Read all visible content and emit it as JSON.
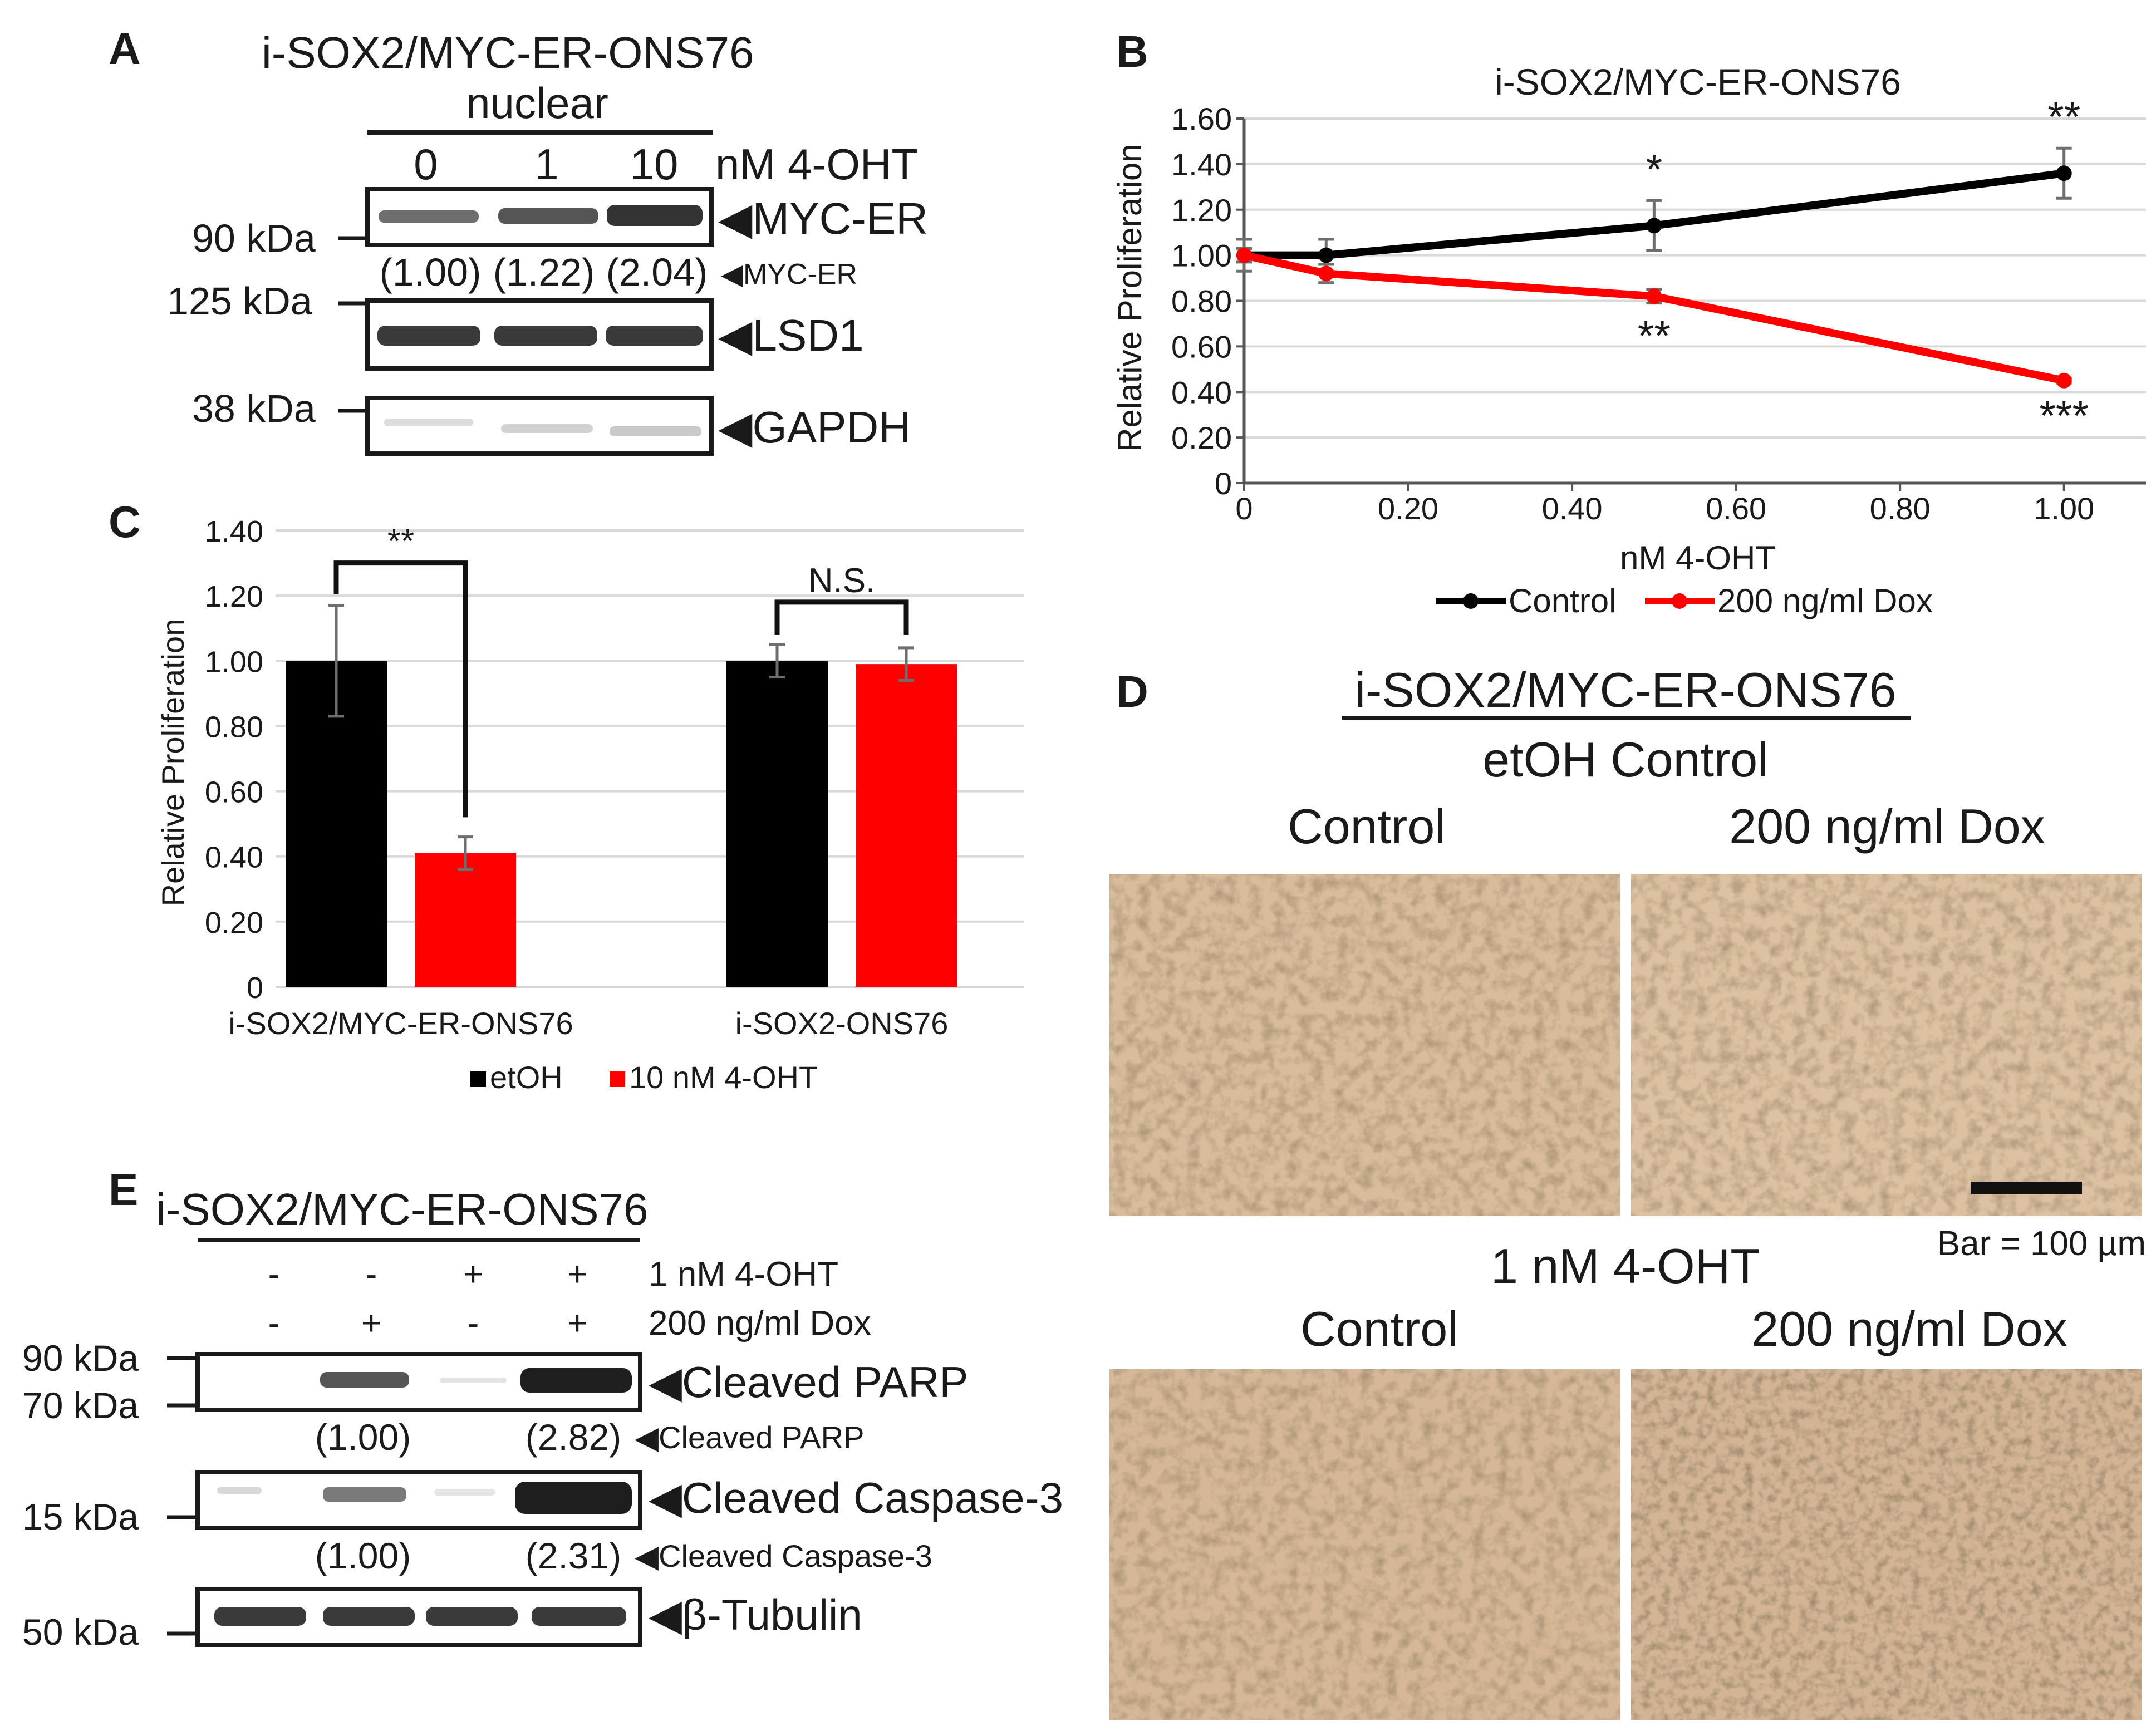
{
  "panels": {
    "a": "A",
    "b": "B",
    "c": "C",
    "d": "D",
    "e": "E"
  },
  "colors": {
    "control": "#000000",
    "treatment": "#ff0000",
    "grid": "#d9d9d9",
    "errorbar": "#6e6e6e",
    "cells": "#d6b99a"
  },
  "panel_a": {
    "title": "i-SOX2/MYC-ER-ONS76",
    "fraction": "nuclear",
    "lanes": [
      "0",
      "1",
      "10"
    ],
    "lane_unit": "nM 4-OHT",
    "mw": [
      "90 kDa",
      "125 kDa",
      "38 kDa"
    ],
    "bands": [
      "◀MYC-ER",
      "◀LSD1",
      "◀GAPDH"
    ],
    "quant": [
      "(1.00)",
      "(1.22)",
      "(2.04)"
    ],
    "quant_label": "◀MYC-ER"
  },
  "panel_d": {
    "title": "i-SOX2/MYC-ER-ONS76",
    "row1_title": "etOH Control",
    "row2_title": "1 nM 4-OHT",
    "col_control": "Control",
    "col_dox": "200 ng/ml Dox",
    "scalebar": "Bar = 100 µm"
  },
  "panel_e": {
    "title": "i-SOX2/MYC-ER-ONS76",
    "ohtsigns": [
      "-",
      "-",
      "+",
      "+"
    ],
    "ohtlabel": "1 nM 4-OHT",
    "doxsigns": [
      "-",
      "+",
      "-",
      "+"
    ],
    "doxlabel": "200 ng/ml Dox",
    "mw": [
      "90 kDa",
      "70 kDa",
      "15 kDa",
      "50 kDa"
    ],
    "bands": [
      "◀Cleaved PARP",
      "◀Cleaved Caspase-3",
      "◀β-Tubulin"
    ],
    "parp_quant": [
      "(1.00)",
      "(2.82)"
    ],
    "parp_quant_label": "◀Cleaved PARP",
    "casp_quant": [
      "(1.00)",
      "(2.31)"
    ],
    "casp_quant_label": "◀Cleaved Caspase-3"
  },
  "chart_data": [
    {
      "id": "B",
      "type": "line",
      "title": "i-SOX2/MYC-ER-ONS76",
      "xlabel": "nM 4-OHT",
      "ylabel": "Relative Proliferation",
      "xlim": [
        0,
        1.1
      ],
      "ylim": [
        0,
        1.6
      ],
      "xticks": [
        0,
        0.2,
        0.4,
        0.6,
        0.8,
        1.0
      ],
      "xtick_labels": [
        "0",
        "0.20",
        "0.40",
        "0.60",
        "0.80",
        "1.00"
      ],
      "yticks": [
        0,
        0.2,
        0.4,
        0.6,
        0.8,
        1.0,
        1.2,
        1.4,
        1.6
      ],
      "ytick_labels": [
        "0",
        "0.20",
        "0.40",
        "0.60",
        "0.80",
        "1.00",
        "1.20",
        "1.40",
        "1.60"
      ],
      "grid": true,
      "legend_position": "bottom",
      "series": [
        {
          "name": "Control",
          "x": [
            0,
            0.1,
            0.5,
            1.0
          ],
          "y": [
            1.0,
            1.0,
            1.13,
            1.36
          ],
          "err": [
            0.07,
            0.07,
            0.11,
            0.11
          ],
          "sig": [
            "",
            "",
            "*",
            "**"
          ]
        },
        {
          "name": "200 ng/ml Dox",
          "x": [
            0,
            0.1,
            0.5,
            1.0
          ],
          "y": [
            1.0,
            0.92,
            0.82,
            0.45
          ],
          "err": [
            0.03,
            0.04,
            0.03,
            0.01
          ],
          "sig": [
            "",
            "",
            "**",
            "***"
          ]
        }
      ]
    },
    {
      "id": "C",
      "type": "bar",
      "xlabel": "",
      "ylabel": "Relative Proliferation",
      "ylim": [
        0,
        1.4
      ],
      "yticks": [
        0,
        0.2,
        0.4,
        0.6,
        0.8,
        1.0,
        1.2,
        1.4
      ],
      "ytick_labels": [
        "0",
        "0.20",
        "0.40",
        "0.60",
        "0.80",
        "1.00",
        "1.20",
        "1.40"
      ],
      "grid": true,
      "legend_position": "bottom",
      "categories": [
        "i-SOX2/MYC-ER-ONS76",
        "i-SOX2-ONS76"
      ],
      "series": [
        {
          "name": "etOH",
          "values": [
            1.0,
            1.0
          ],
          "err": [
            0.17,
            0.05
          ]
        },
        {
          "name": "10 nM 4-OHT",
          "values": [
            0.41,
            0.99
          ],
          "err": [
            0.05,
            0.05
          ]
        }
      ],
      "significance": [
        "**",
        "N.S."
      ]
    }
  ]
}
